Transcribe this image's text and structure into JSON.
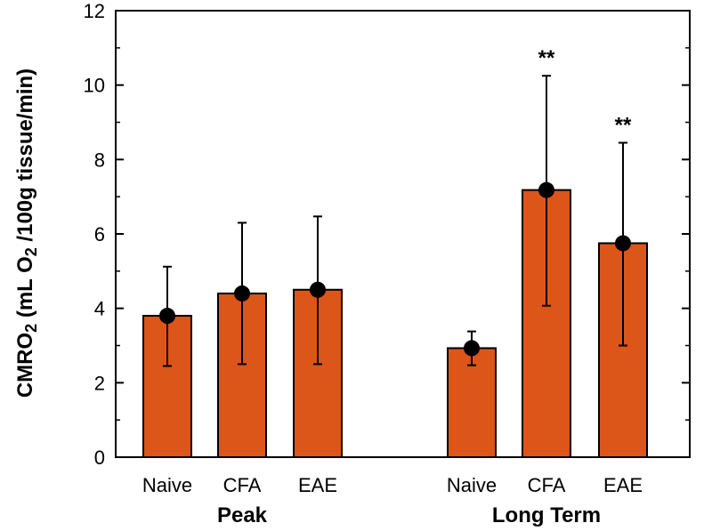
{
  "chart_data": {
    "type": "bar",
    "title": "",
    "ylabel_parts": {
      "a": "CMRO",
      "a_sub": "2",
      "b": " (mL O",
      "b_sub": "2",
      "c": " /100g tissue/min)"
    },
    "ylim": [
      0,
      12
    ],
    "yticks": [
      "0",
      "2",
      "4",
      "6",
      "8",
      "10",
      "12"
    ],
    "groups": [
      {
        "name": "Peak",
        "categories": [
          "Naive",
          "CFA",
          "EAE"
        ]
      },
      {
        "name": "Long Term",
        "categories": [
          "Naive",
          "CFA",
          "EAE"
        ]
      }
    ],
    "bars": [
      {
        "group": "Peak",
        "category": "Naive",
        "value": 3.8,
        "err_low": 2.45,
        "err_high": 5.12,
        "annotation": ""
      },
      {
        "group": "Peak",
        "category": "CFA",
        "value": 4.4,
        "err_low": 2.5,
        "err_high": 6.3,
        "annotation": ""
      },
      {
        "group": "Peak",
        "category": "EAE",
        "value": 4.5,
        "err_low": 2.5,
        "err_high": 6.47,
        "annotation": ""
      },
      {
        "group": "Long Term",
        "category": "Naive",
        "value": 2.93,
        "err_low": 2.47,
        "err_high": 3.38,
        "annotation": ""
      },
      {
        "group": "Long Term",
        "category": "CFA",
        "value": 7.18,
        "err_low": 4.07,
        "err_high": 10.25,
        "annotation": "**"
      },
      {
        "group": "Long Term",
        "category": "EAE",
        "value": 5.75,
        "err_low": 3.0,
        "err_high": 8.45,
        "annotation": "**"
      }
    ],
    "colors": {
      "bar_fill": "#dc5519",
      "bar_stroke": "#000000",
      "marker": "#000000",
      "axis": "#000000"
    }
  }
}
